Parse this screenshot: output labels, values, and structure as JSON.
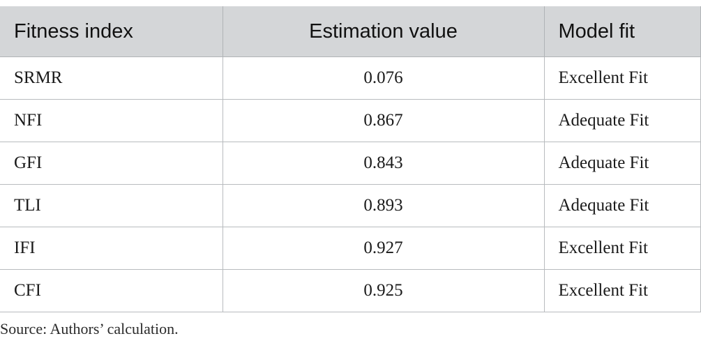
{
  "table": {
    "headers": [
      "Fitness index",
      "Estimation value",
      "Model fit"
    ],
    "rows": [
      [
        "SRMR",
        "0.076",
        "Excellent Fit"
      ],
      [
        "NFI",
        "0.867",
        "Adequate Fit"
      ],
      [
        "GFI",
        "0.843",
        "Adequate Fit"
      ],
      [
        "TLI",
        "0.893",
        "Adequate Fit"
      ],
      [
        "IFI",
        "0.927",
        "Excellent Fit"
      ],
      [
        "CFI",
        "0.925",
        "Excellent Fit"
      ]
    ]
  },
  "footnote": "Source: Authors’ calculation.",
  "colors": {
    "header_bg": "#d4d6d8",
    "border": "#b8bbbe"
  }
}
